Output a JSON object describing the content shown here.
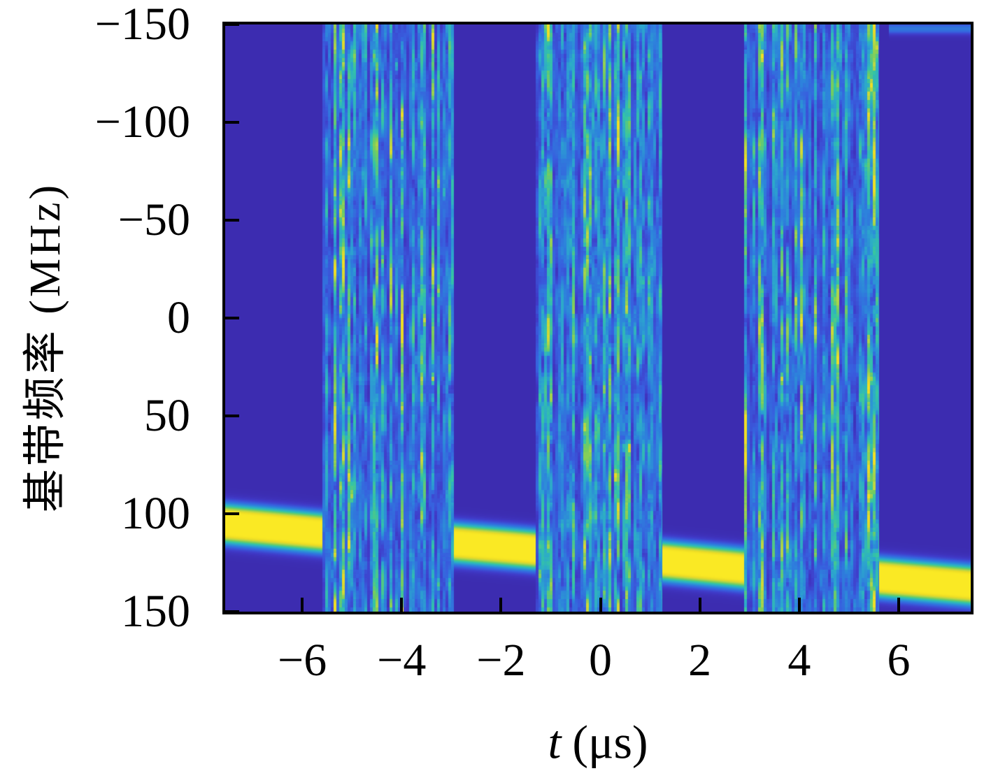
{
  "figure": {
    "xlabel_var": "t",
    "xlabel_unit": "(μs)",
    "ylabel": "基带频率 (MHz)",
    "x_tick_labels": [
      "−6",
      "−4",
      "−2",
      "0",
      "2",
      "4",
      "6"
    ],
    "y_tick_labels": [
      "−150",
      "−100",
      "−50",
      "0",
      "50",
      "100",
      "150"
    ]
  },
  "chart_data": {
    "type": "heatmap",
    "title": "",
    "xlabel": "t (μs)",
    "ylabel": "基带频率 (MHz)",
    "xlim": [
      -7.55,
      7.45
    ],
    "ylim_top_to_bottom": [
      -150,
      150
    ],
    "x_ticks": [
      -6,
      -4,
      -2,
      0,
      2,
      4,
      6
    ],
    "y_ticks": [
      -150,
      -100,
      -50,
      0,
      50,
      100,
      150
    ],
    "grid": false,
    "legend": "none",
    "description": "Spectrogram: dark indigo background, three full-height vertical noise bursts of blue/cyan speckle, and a bright yellow linear chirp band slowly descending from ~105 MHz to ~136 MHz, visible between the bursts.",
    "colormap": {
      "name": "parula-like",
      "background": "#3c2cb0",
      "chirp_core": "#fae924",
      "stops": [
        [
          0.0,
          60,
          44,
          176
        ],
        [
          0.1,
          64,
          58,
          200
        ],
        [
          0.22,
          56,
          94,
          222
        ],
        [
          0.35,
          45,
          130,
          220
        ],
        [
          0.48,
          44,
          168,
          204
        ],
        [
          0.6,
          52,
          196,
          166
        ],
        [
          0.72,
          118,
          205,
          94
        ],
        [
          0.83,
          189,
          215,
          66
        ],
        [
          0.92,
          235,
          219,
          38
        ],
        [
          1.0,
          250,
          233,
          36
        ]
      ]
    },
    "noise_bursts": [
      {
        "t_start": -5.59,
        "t_end": -2.95
      },
      {
        "t_start": -1.3,
        "t_end": 1.25
      },
      {
        "t_start": 2.89,
        "t_end": 5.6
      }
    ],
    "noise_value_range": [
      0.08,
      0.95
    ],
    "chirp_track": {
      "points": [
        {
          "t": -7.55,
          "f_mhz": 105.0
        },
        {
          "t": -5.62,
          "f_mhz": 109.5
        },
        {
          "t": -2.95,
          "f_mhz": 114.8
        },
        {
          "t": -1.37,
          "f_mhz": 118.2
        },
        {
          "t": 1.26,
          "f_mhz": 124.0
        },
        {
          "t": 2.9,
          "f_mhz": 128.0
        },
        {
          "t": 5.6,
          "f_mhz": 132.5
        },
        {
          "t": 7.45,
          "f_mhz": 136.5
        }
      ],
      "core_halfwidth_mhz": 5,
      "halo_sigma_mhz": 4,
      "peak_value": 1
    },
    "alias_streak": {
      "t_start": 5.8,
      "t_end": 7.45,
      "f_center_mhz": -148,
      "strength": 0.32,
      "sigma_mhz": 2
    },
    "rng_seed": 1337
  }
}
